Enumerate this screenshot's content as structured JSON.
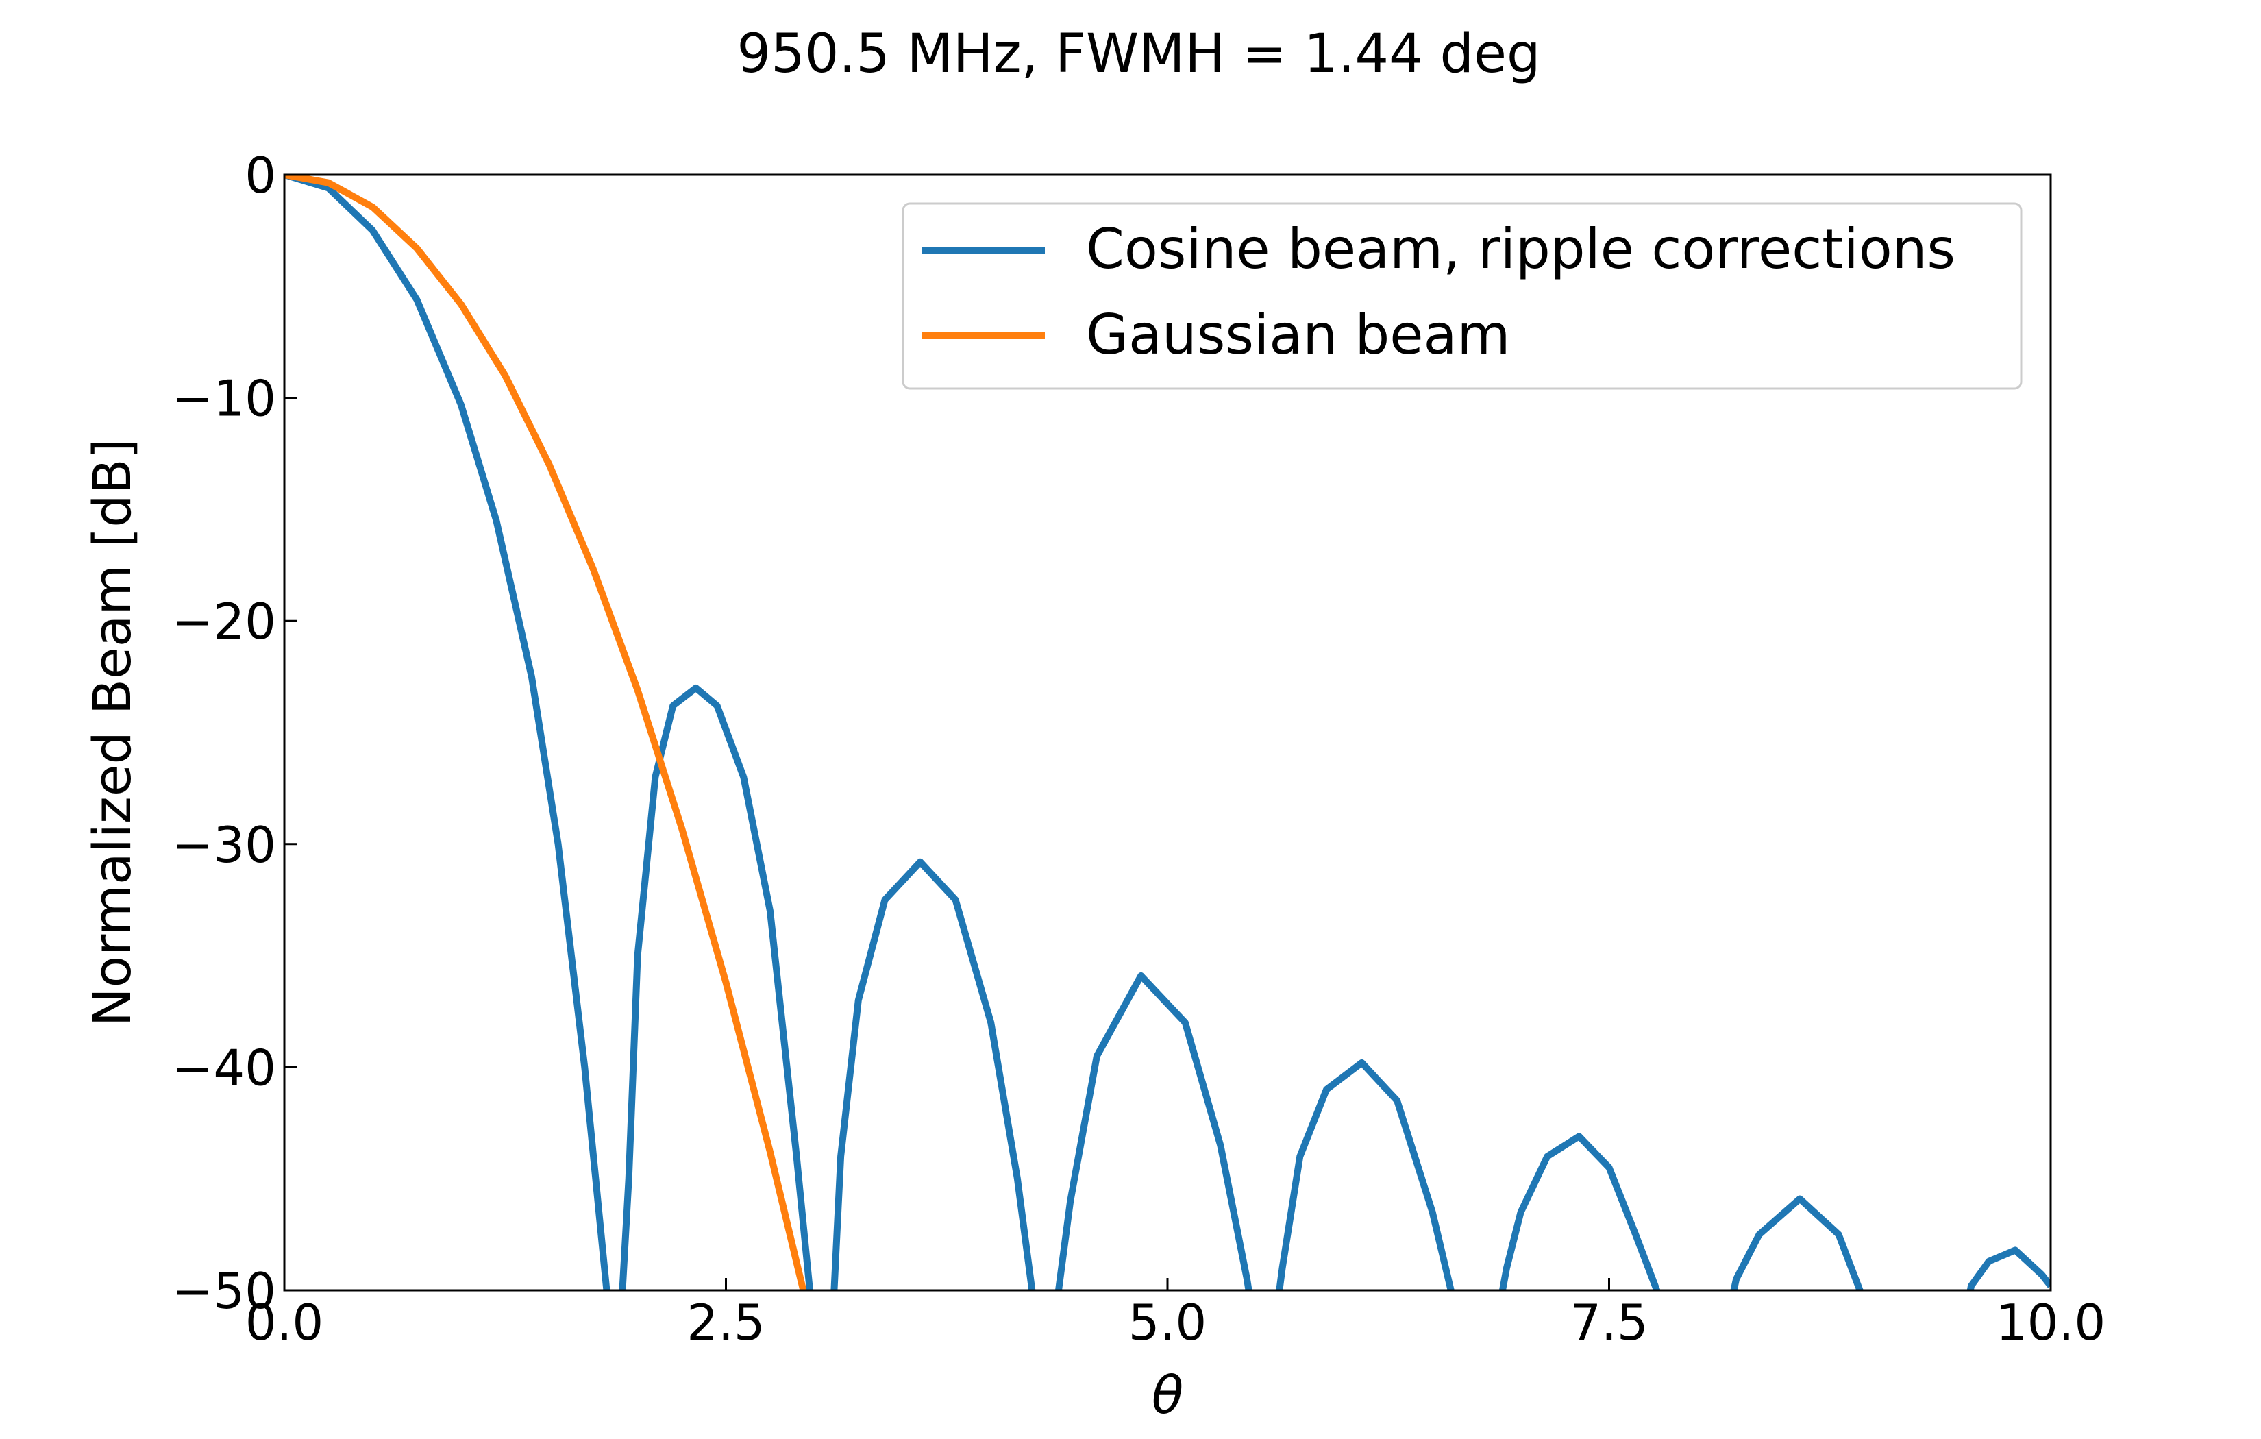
{
  "chart_data": {
    "type": "line",
    "title": "950.5 MHz, FWMH = 1.44 deg",
    "xlabel": "θ",
    "ylabel": "Normalized Beam [dB]",
    "xlim": [
      0.0,
      10.0
    ],
    "ylim": [
      -50,
      0
    ],
    "xticks": [
      0.0,
      2.5,
      5.0,
      7.5,
      10.0
    ],
    "xtick_labels": [
      "0.0",
      "2.5",
      "5.0",
      "7.5",
      "10.0"
    ],
    "yticks": [
      0,
      -10,
      -20,
      -30,
      -40,
      -50
    ],
    "ytick_labels": [
      "0",
      "−10",
      "−20",
      "−30",
      "−40",
      "−50"
    ],
    "grid": false,
    "legend_position": "top-right",
    "series": [
      {
        "name": "Cosine beam, ripple corrections",
        "color": "#1f77b4",
        "x": [
          0.0,
          0.25,
          0.5,
          0.75,
          1.0,
          1.2,
          1.4,
          1.55,
          1.7,
          1.8,
          1.85,
          1.9,
          1.95,
          2.0,
          2.1,
          2.2,
          2.33,
          2.45,
          2.6,
          2.75,
          2.9,
          3.0,
          3.05,
          3.1,
          3.15,
          3.25,
          3.4,
          3.6,
          3.8,
          4.0,
          4.15,
          4.25,
          4.3,
          4.35,
          4.45,
          4.6,
          4.85,
          5.1,
          5.3,
          5.45,
          5.5,
          5.6,
          5.65,
          5.75,
          5.9,
          6.1,
          6.3,
          6.5,
          6.62,
          6.7,
          6.85,
          6.92,
          7.0,
          7.15,
          7.33,
          7.5,
          7.65,
          7.78,
          7.9,
          8.15,
          8.22,
          8.35,
          8.58,
          8.8,
          8.92,
          9.05,
          9.5,
          9.55,
          9.65,
          9.8,
          9.95,
          10.0
        ],
        "y": [
          0,
          -0.6,
          -2.5,
          -5.6,
          -10.3,
          -15.5,
          -22.5,
          -30.0,
          -40.0,
          -48.0,
          -52.0,
          -52.0,
          -45.0,
          -35.0,
          -27.0,
          -23.8,
          -23.0,
          -23.8,
          -27.0,
          -33.0,
          -44.0,
          -52.0,
          -52.0,
          -52.0,
          -44.0,
          -37.0,
          -32.5,
          -30.8,
          -32.5,
          -38.0,
          -45.0,
          -51.0,
          -52.0,
          -52.0,
          -46.0,
          -39.5,
          -35.9,
          -38.0,
          -43.5,
          -49.5,
          -52.0,
          -52.0,
          -49.0,
          -44.0,
          -41.0,
          -39.8,
          -41.5,
          -46.5,
          -50.5,
          -52.0,
          -52.0,
          -49.0,
          -46.5,
          -44.0,
          -43.1,
          -44.5,
          -47.5,
          -50.2,
          -52.0,
          -52.0,
          -49.5,
          -47.5,
          -45.9,
          -47.5,
          -50.0,
          -52.0,
          -52.0,
          -49.8,
          -48.7,
          -48.2,
          -49.3,
          -49.8
        ]
      },
      {
        "name": "Gaussian beam",
        "color": "#ff7f0e",
        "x": [
          0.0,
          0.25,
          0.5,
          0.75,
          1.0,
          1.25,
          1.5,
          1.75,
          2.0,
          2.25,
          2.5,
          2.75,
          2.95
        ],
        "y": [
          0,
          -0.36,
          -1.45,
          -3.3,
          -5.8,
          -9.0,
          -13.0,
          -17.7,
          -23.1,
          -29.3,
          -36.2,
          -43.8,
          -50.4
        ]
      }
    ]
  }
}
